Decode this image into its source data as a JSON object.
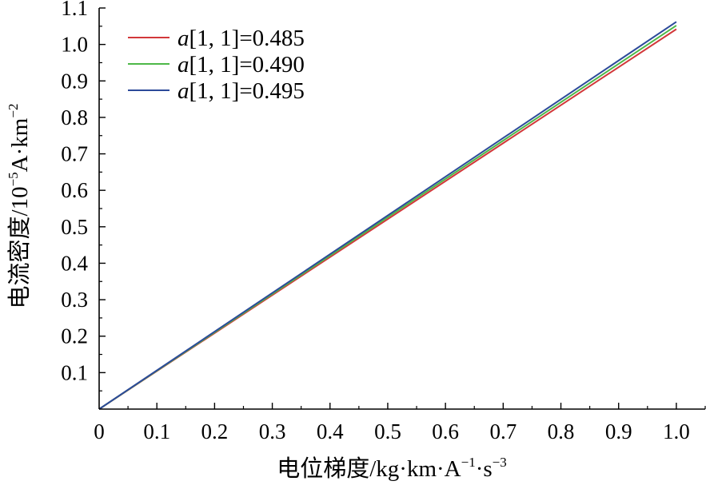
{
  "chart_data": {
    "type": "line",
    "title": "",
    "xlabel": {
      "main": "电位梯度/kg·km·A",
      "sup1": "−1",
      "mid": "·s",
      "sup2": "−3"
    },
    "ylabel": {
      "main": "电流密度/10",
      "sup1": "−5",
      "mid": "A·km",
      "sup2": "−2"
    },
    "xlim": [
      0,
      1.05
    ],
    "ylim": [
      0,
      1.1
    ],
    "xticks": [
      "0",
      "0.1",
      "0.2",
      "0.3",
      "0.4",
      "0.5",
      "0.6",
      "0.7",
      "0.8",
      "0.9",
      "1.0"
    ],
    "xtick_values": [
      0,
      0.1,
      0.2,
      0.3,
      0.4,
      0.5,
      0.6,
      0.7,
      0.8,
      0.9,
      1.0
    ],
    "yticks": [
      "0.1",
      "0.2",
      "0.3",
      "0.4",
      "0.5",
      "0.6",
      "0.7",
      "0.8",
      "0.9",
      "1.0",
      "1.1"
    ],
    "ytick_values": [
      0.1,
      0.2,
      0.3,
      0.4,
      0.5,
      0.6,
      0.7,
      0.8,
      0.9,
      1.0,
      1.1
    ],
    "grid": false,
    "legend_position": "top-left",
    "series": [
      {
        "name_italic": "a",
        "name_rest": "[1, 1]=0.485",
        "color": "#d2383a",
        "x": [
          0,
          1.0
        ],
        "y": [
          0,
          1.042
        ]
      },
      {
        "name_italic": "a",
        "name_rest": "[1, 1]=0.490",
        "color": "#4db848",
        "x": [
          0,
          1.0
        ],
        "y": [
          0,
          1.052
        ]
      },
      {
        "name_italic": "a",
        "name_rest": "[1, 1]=0.495",
        "color": "#2c4a9a",
        "x": [
          0,
          1.0
        ],
        "y": [
          0,
          1.062
        ]
      }
    ]
  }
}
